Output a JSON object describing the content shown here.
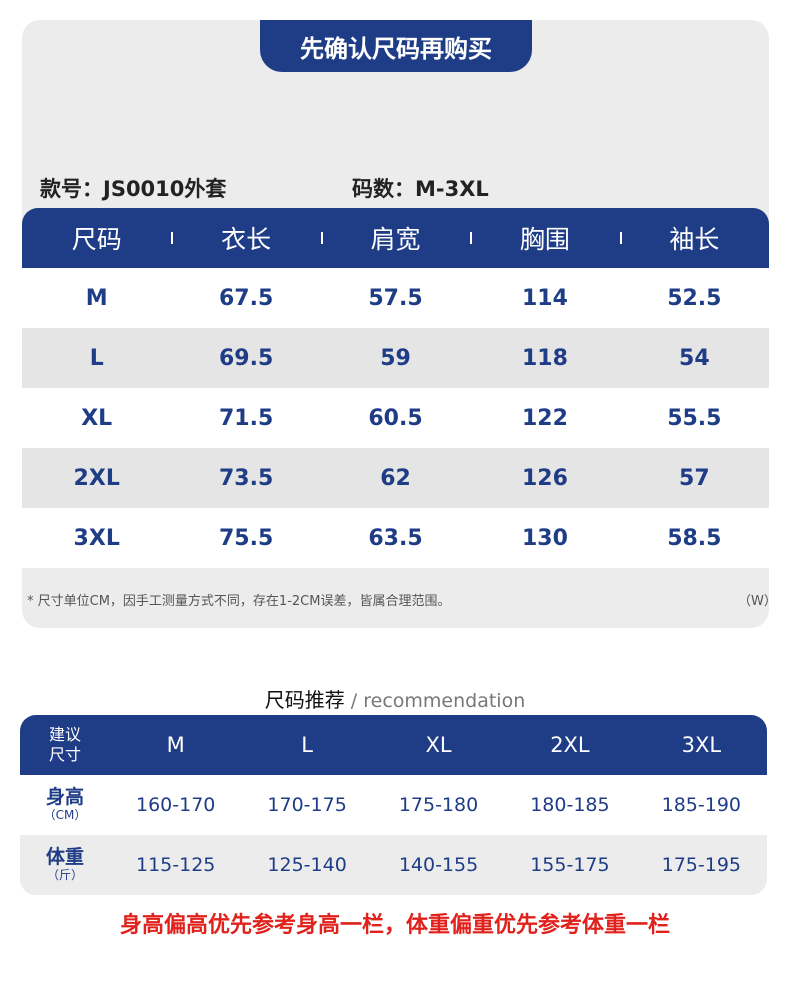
{
  "banner": {
    "title": "先确认尺码再购买"
  },
  "meta": {
    "style_label": "款号：JS0010外套",
    "size_label": "码数：M-3XL"
  },
  "size_table": {
    "headers": [
      "尺码",
      "衣长",
      "肩宽",
      "胸围",
      "袖长"
    ],
    "rows": [
      [
        "M",
        "67.5",
        "57.5",
        "114",
        "52.5"
      ],
      [
        "L",
        "69.5",
        "59",
        "118",
        "54"
      ],
      [
        "XL",
        "71.5",
        "60.5",
        "122",
        "55.5"
      ],
      [
        "2XL",
        "73.5",
        "62",
        "126",
        "57"
      ],
      [
        "3XL",
        "75.5",
        "63.5",
        "130",
        "58.5"
      ]
    ],
    "note": "* 尺寸单位CM，因手工测量方式不同，存在1-2CM误差，皆属合理范围。",
    "note_tag": "（W）"
  },
  "recommendation": {
    "title_cn": "尺码推荐",
    "title_en": " / recommendation",
    "corner_line1": "建议",
    "corner_line2": "尺寸",
    "sizes": [
      "M",
      "L",
      "XL",
      "2XL",
      "3XL"
    ],
    "rows": [
      {
        "label": "身高",
        "unit": "（CM）",
        "values": [
          "160-170",
          "170-175",
          "175-180",
          "180-185",
          "185-190"
        ]
      },
      {
        "label": "体重",
        "unit": "（斤）",
        "values": [
          "115-125",
          "125-140",
          "140-155",
          "155-175",
          "175-195"
        ]
      }
    ]
  },
  "footer": {
    "text": "身高偏高优先参考身高一栏，体重偏重优先参考体重一栏"
  },
  "colors": {
    "navy": "#1f3d86",
    "red": "#e0211c",
    "panel": "#ececec"
  }
}
